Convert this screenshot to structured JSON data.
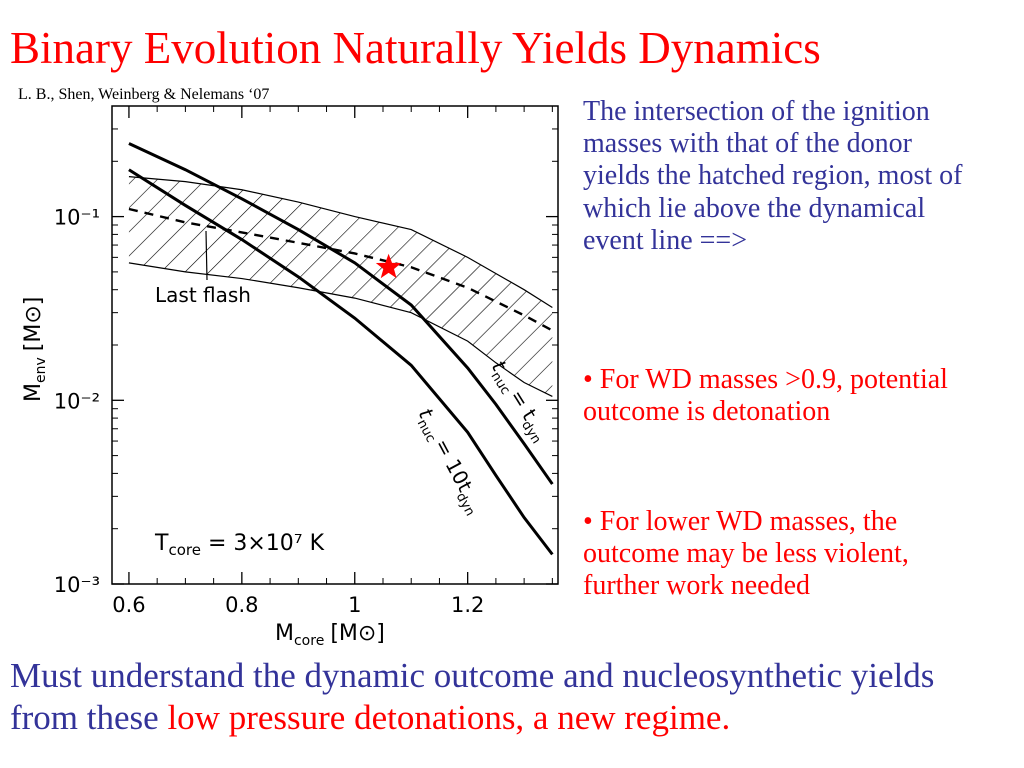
{
  "slide": {
    "title": "Binary Evolution Naturally Yields Dynamics",
    "citation": "L. B., Shen, Weinberg & Nelemans ‘07",
    "paragraph": "The intersection of the ignition masses with that of the donor yields the hatched region, most of which lie above the dynamical event line ==>",
    "bullet_1": "• For WD masses >0.9, potential outcome is detonation",
    "bullet_2": "• For lower WD masses, the outcome may be less violent, further work needed",
    "bottom_text_1": "Must understand the dynamic outcome and nucleosynthetic yields from these ",
    "bottom_text_2": "low pressure detonations, a new regime."
  },
  "chart_data": {
    "type": "line",
    "xlabel": "M",
    "xlabel_sub": "core",
    "xlabel_unit": "[M⊙]",
    "ylabel": "M",
    "ylabel_sub": "env",
    "ylabel_unit": "[M⊙]",
    "xlim": [
      0.57,
      1.36
    ],
    "ylim": [
      0.001,
      0.4
    ],
    "yscale": "log",
    "x_ticks": [
      "0.6",
      "0.8",
      "1",
      "1.2"
    ],
    "y_ticks": [
      "10⁻¹",
      "10⁻²",
      "10⁻³"
    ],
    "series": [
      {
        "name": "t_nuc = t_dyn",
        "x": [
          0.6,
          0.7,
          0.8,
          0.9,
          1.0,
          1.1,
          1.2,
          1.25,
          1.3,
          1.35
        ],
        "y": [
          0.25,
          0.18,
          0.125,
          0.085,
          0.056,
          0.033,
          0.015,
          0.0095,
          0.0058,
          0.0035
        ]
      },
      {
        "name": "t_nuc = 10 t_dyn",
        "x": [
          0.6,
          0.7,
          0.8,
          0.9,
          1.0,
          1.1,
          1.2,
          1.25,
          1.3,
          1.35
        ],
        "y": [
          0.18,
          0.115,
          0.075,
          0.047,
          0.028,
          0.0155,
          0.0067,
          0.0039,
          0.0023,
          0.00145
        ]
      },
      {
        "name": "dashed",
        "x": [
          0.6,
          0.7,
          0.8,
          0.9,
          1.0,
          1.1,
          1.2,
          1.3,
          1.35
        ],
        "y": [
          0.11,
          0.093,
          0.082,
          0.072,
          0.063,
          0.053,
          0.041,
          0.029,
          0.024
        ]
      }
    ],
    "hatched_region": {
      "upper": {
        "x": [
          0.6,
          0.7,
          0.8,
          0.9,
          1.0,
          1.1,
          1.2,
          1.3,
          1.35
        ],
        "y": [
          0.165,
          0.155,
          0.14,
          0.12,
          0.1,
          0.085,
          0.06,
          0.04,
          0.032
        ]
      },
      "lower": {
        "x": [
          0.6,
          0.7,
          0.8,
          0.9,
          1.0,
          1.1,
          1.2,
          1.25,
          1.3,
          1.35
        ],
        "y": [
          0.056,
          0.05,
          0.046,
          0.041,
          0.036,
          0.03,
          0.021,
          0.016,
          0.0125,
          0.0105
        ]
      }
    },
    "marker": {
      "shape": "star",
      "color": "#ff0000",
      "x": 1.06,
      "y": 0.053
    },
    "annotations": {
      "last_flash": "Last flash",
      "label_tdyn_t": "t",
      "label_tdyn_t_sub": "nuc",
      "label_tdyn_rest": "= t",
      "label_tdyn_rest_sub": "dyn",
      "label_10tdyn_t": "t",
      "label_10tdyn_t_sub": "nuc",
      "label_10tdyn_rest": "= 10t",
      "label_10tdyn_rest_sub": "dyn",
      "tcore_t": "T",
      "tcore_sub": "core",
      "tcore_val": " = 3×10⁷ K"
    }
  }
}
